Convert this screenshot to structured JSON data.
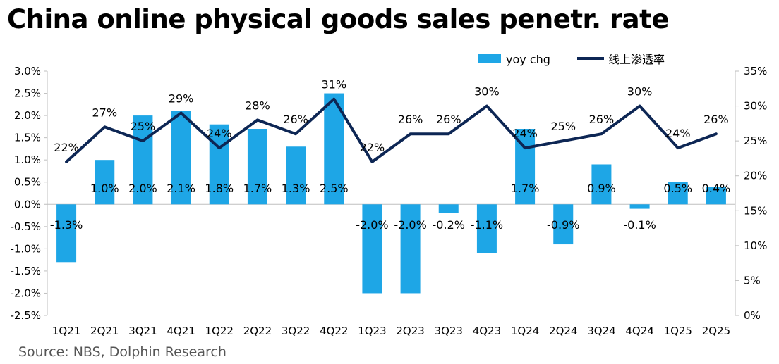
{
  "chart_data": {
    "type": "bar+line",
    "title": "China online physical goods sales penetr. rate",
    "source": "Source: NBS, Dolphin Research",
    "categories": [
      "1Q21",
      "2Q21",
      "3Q21",
      "4Q21",
      "1Q22",
      "2Q22",
      "3Q22",
      "4Q22",
      "1Q23",
      "2Q23",
      "3Q23",
      "4Q23",
      "1Q24",
      "2Q24",
      "3Q24",
      "4Q24",
      "1Q25",
      "2Q25"
    ],
    "series": [
      {
        "name": "yoy chg",
        "type": "bar",
        "axis": "left",
        "color": "#1ea6e6",
        "values": [
          -1.3,
          1.0,
          2.0,
          2.1,
          1.8,
          1.7,
          1.3,
          2.5,
          -2.0,
          -2.0,
          -0.2,
          -1.1,
          1.7,
          -0.9,
          0.9,
          -0.1,
          0.5,
          0.4
        ],
        "labels": [
          "-1.3%",
          "1.0%",
          "2.0%",
          "2.1%",
          "1.8%",
          "1.7%",
          "1.3%",
          "2.5%",
          "-2.0%",
          "-2.0%",
          "-0.2%",
          "-1.1%",
          "1.7%",
          "-0.9%",
          "0.9%",
          "-0.1%",
          "0.5%",
          "0.4%"
        ]
      },
      {
        "name": "线上渗透率",
        "type": "line",
        "axis": "right",
        "color": "#0d2654",
        "values": [
          22,
          27,
          25,
          29,
          24,
          28,
          26,
          31,
          22,
          26,
          26,
          30,
          24,
          25,
          26,
          30,
          24,
          26
        ],
        "labels": [
          "22%",
          "27%",
          "25%",
          "29%",
          "24%",
          "28%",
          "26%",
          "31%",
          "22%",
          "26%",
          "26%",
          "30%",
          "24%",
          "25%",
          "26%",
          "30%",
          "24%",
          "26%"
        ]
      }
    ],
    "y_left": {
      "min": -2.5,
      "max": 3.0,
      "ticks": [
        "3.0%",
        "2.5%",
        "2.0%",
        "1.5%",
        "1.0%",
        "0.5%",
        "0.0%",
        "-0.5%",
        "-1.0%",
        "-1.5%",
        "-2.0%",
        "-2.5%"
      ]
    },
    "y_right": {
      "min": 0,
      "max": 35,
      "ticks": [
        "35%",
        "30%",
        "25%",
        "20%",
        "15%",
        "10%",
        "5%",
        "0%"
      ]
    },
    "legend": {
      "position": "top-right"
    },
    "grid": false
  }
}
